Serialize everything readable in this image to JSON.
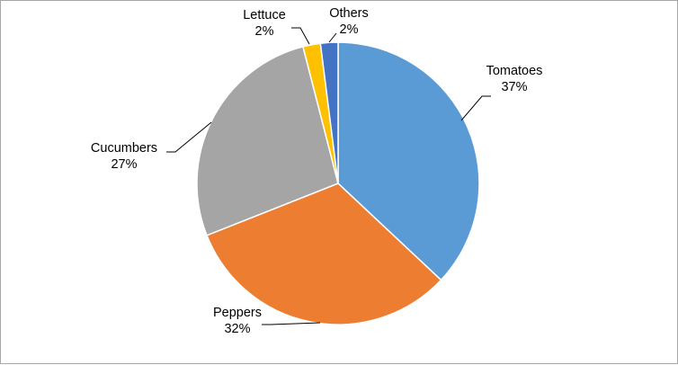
{
  "chart_data": {
    "type": "pie",
    "categories": [
      "Tomatoes",
      "Peppers",
      "Cucumbers",
      "Lettuce",
      "Others"
    ],
    "values": [
      37,
      32,
      27,
      2,
      2
    ],
    "value_labels": [
      "37%",
      "32%",
      "27%",
      "2%",
      "2%"
    ],
    "colors": [
      "#5b9bd5",
      "#ed7d31",
      "#a5a5a5",
      "#ffc000",
      "#4472c4"
    ],
    "start_angle_deg": 0,
    "direction": "clockwise",
    "legend": "none",
    "data_labels": "outside-with-leader-lines"
  }
}
